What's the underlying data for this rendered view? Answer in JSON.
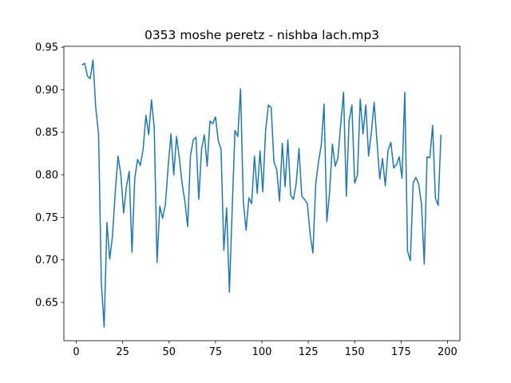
{
  "chart_data": {
    "type": "line",
    "title": "0353 moshe peretz - nishba lach.mp3",
    "x": [
      3,
      4.5,
      6,
      7.5,
      9,
      10.5,
      12,
      13.5,
      15,
      16.5,
      18,
      19.5,
      21,
      22.5,
      24,
      25.5,
      27,
      28.5,
      30,
      31.5,
      33,
      34.5,
      36,
      37.5,
      39,
      40.5,
      42,
      43.5,
      45,
      46.5,
      48,
      49.5,
      51,
      52.5,
      54,
      55.5,
      57,
      58.5,
      60,
      61.5,
      63,
      64.5,
      66,
      67.5,
      69,
      70.5,
      72,
      73.5,
      75,
      76.5,
      78,
      79.5,
      81,
      82.5,
      84,
      85.5,
      87,
      88.5,
      90,
      91.5,
      93,
      94.5,
      96,
      97.5,
      99,
      100.5,
      102,
      103.5,
      105,
      106.5,
      108,
      109.5,
      111,
      112.5,
      114,
      115.5,
      117,
      118.5,
      120,
      121.5,
      123,
      124.5,
      126,
      127.5,
      129,
      130.5,
      132,
      133.5,
      135,
      136.5,
      138,
      139.5,
      141,
      142.5,
      144,
      145.5,
      147,
      148.5,
      150,
      151.5,
      153,
      154.5,
      156,
      157.5,
      159,
      160.5,
      162,
      163.5,
      165,
      166.5,
      168,
      169.5,
      171,
      172.5,
      174,
      175.5,
      177,
      178.5,
      180,
      181.5,
      183,
      184.5,
      186,
      187.5,
      189,
      190.5,
      192,
      193.5,
      195,
      196.5
    ],
    "series": [
      {
        "name": "series",
        "color": "#1f77b4",
        "values": [
          0.929,
          0.931,
          0.916,
          0.913,
          0.935,
          0.878,
          0.848,
          0.672,
          0.621,
          0.744,
          0.701,
          0.728,
          0.78,
          0.822,
          0.8,
          0.755,
          0.786,
          0.804,
          0.709,
          0.796,
          0.818,
          0.811,
          0.83,
          0.87,
          0.847,
          0.888,
          0.855,
          0.697,
          0.763,
          0.749,
          0.765,
          0.81,
          0.848,
          0.8,
          0.845,
          0.82,
          0.79,
          0.769,
          0.739,
          0.822,
          0.841,
          0.844,
          0.771,
          0.83,
          0.847,
          0.81,
          0.863,
          0.86,
          0.868,
          0.84,
          0.83,
          0.711,
          0.761,
          0.662,
          0.76,
          0.852,
          0.845,
          0.901,
          0.768,
          0.735,
          0.773,
          0.766,
          0.822,
          0.778,
          0.828,
          0.78,
          0.852,
          0.882,
          0.879,
          0.815,
          0.806,
          0.769,
          0.837,
          0.786,
          0.841,
          0.776,
          0.771,
          0.79,
          0.831,
          0.775,
          0.771,
          0.766,
          0.73,
          0.708,
          0.789,
          0.815,
          0.835,
          0.883,
          0.745,
          0.78,
          0.836,
          0.81,
          0.82,
          0.86,
          0.897,
          0.775,
          0.864,
          0.882,
          0.79,
          0.8,
          0.889,
          0.848,
          0.882,
          0.822,
          0.85,
          0.885,
          0.84,
          0.795,
          0.819,
          0.787,
          0.829,
          0.838,
          0.808,
          0.812,
          0.821,
          0.796,
          0.897,
          0.71,
          0.699,
          0.79,
          0.797,
          0.789,
          0.766,
          0.695,
          0.821,
          0.82,
          0.858,
          0.773,
          0.764,
          0.847
        ]
      }
    ],
    "xlim": [
      -6.7,
      206.7
    ],
    "xticks": [
      0,
      25,
      50,
      75,
      100,
      125,
      150,
      175,
      200
    ],
    "ylim": [
      0.605,
      0.951
    ],
    "yticks": [
      0.65,
      {
        "value": 0.7,
        "label": "0.70"
      },
      0.75,
      {
        "value": 0.8,
        "label": "0.80"
      },
      0.85,
      {
        "value": 0.9,
        "label": "0.90"
      },
      0.95
    ]
  }
}
